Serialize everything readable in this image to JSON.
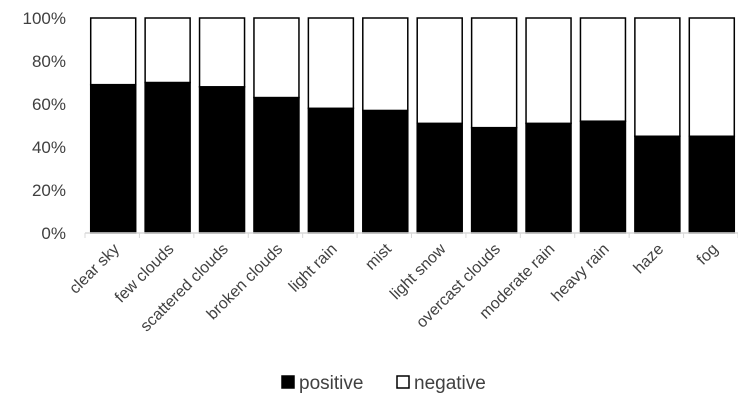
{
  "chart_data": {
    "type": "bar",
    "stacked": true,
    "percent": true,
    "categories": [
      "clear sky",
      "few clouds",
      "scattered clouds",
      "broken clouds",
      "light rain",
      "mist",
      "light snow",
      "overcast clouds",
      "moderate rain",
      "heavy rain",
      "haze",
      "fog"
    ],
    "series": [
      {
        "name": "positive",
        "values": [
          69,
          70,
          68,
          63,
          58,
          57,
          51,
          49,
          51,
          52,
          45,
          45
        ],
        "color": "#000000"
      },
      {
        "name": "negative",
        "values": [
          31,
          30,
          32,
          37,
          42,
          43,
          49,
          51,
          49,
          48,
          55,
          55
        ],
        "color": "#ffffff"
      }
    ],
    "y_ticks": [
      "0%",
      "20%",
      "40%",
      "60%",
      "80%",
      "100%"
    ],
    "ylim": [
      0,
      100
    ],
    "grid": false,
    "legend_position": "bottom"
  }
}
